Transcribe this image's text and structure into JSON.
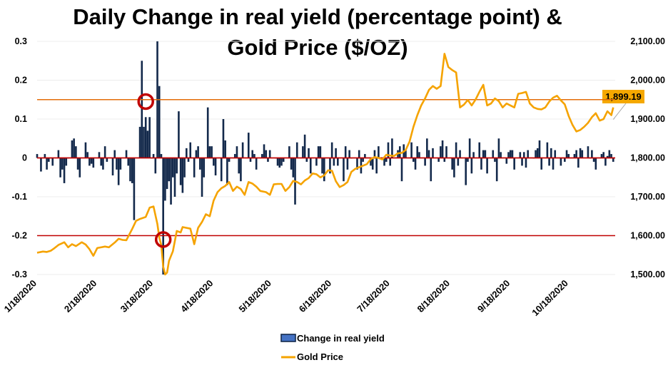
{
  "chart_data": {
    "type": "bar+line",
    "title_lines": [
      "Daily Change in real yield (percentage point) &",
      "Gold Price ($/OZ)"
    ],
    "xlabel": "",
    "x_tick_labels": [
      "1/18/2020",
      "2/18/2020",
      "3/18/2020",
      "4/18/2020",
      "5/18/2020",
      "6/18/2020",
      "7/18/2020",
      "8/18/2020",
      "9/18/2020",
      "10/18/2020"
    ],
    "x_range": [
      "1/18/2020",
      "11/11/2020"
    ],
    "y_left": {
      "label": "",
      "ylim": [
        -0.3,
        0.3
      ],
      "ticks": [
        "0.3",
        "0.2",
        "0.1",
        "0",
        "-0.1",
        "-0.2",
        "-0.3"
      ],
      "tick_values": [
        0.3,
        0.2,
        0.1,
        0,
        -0.1,
        -0.2,
        -0.3
      ]
    },
    "y_right": {
      "label": "",
      "ylim": [
        1500,
        2100
      ],
      "ticks": [
        "2,100.00",
        "2,000.00",
        "1,900.00",
        "1,800.00",
        "1,700.00",
        "1,600.00",
        "1,500.00"
      ],
      "tick_values": [
        2100,
        2000,
        1900,
        1800,
        1700,
        1600,
        1500
      ]
    },
    "grid": true,
    "reference_lines": [
      {
        "axis": "left",
        "value": 0.15,
        "color": "#E36C0A"
      },
      {
        "axis": "left",
        "value": 0,
        "color": "#C00000"
      },
      {
        "axis": "left",
        "value": -0.2,
        "color": "#C00000"
      }
    ],
    "annotations": [
      {
        "type": "circle",
        "day": 56,
        "value": 0.145,
        "color": "#C00000"
      },
      {
        "type": "circle",
        "day": 65,
        "value": -0.21,
        "color": "#C00000"
      },
      {
        "type": "callout",
        "text": "1,899.19",
        "series": "Gold Price",
        "value": 1899.19,
        "bg": "#F5A800"
      }
    ],
    "legend": {
      "placement": "bottom",
      "entries": [
        "Change in real yield",
        "Gold Price"
      ]
    },
    "series": [
      {
        "name": "Change in real yield",
        "type": "bar",
        "axis": "left",
        "color": "#13294B",
        "days": [
          0,
          2,
          4,
          5,
          6,
          7,
          8,
          11,
          12,
          13,
          14,
          15,
          16,
          18,
          19,
          20,
          21,
          22,
          25,
          26,
          27,
          28,
          29,
          32,
          33,
          34,
          35,
          36,
          39,
          40,
          41,
          42,
          43,
          46,
          47,
          48,
          49,
          50,
          53,
          54,
          55,
          56,
          57,
          58,
          59,
          60,
          61,
          62,
          63,
          64,
          65,
          66,
          67,
          68,
          69,
          70,
          71,
          72,
          73,
          74,
          75,
          76,
          77,
          78,
          79,
          81,
          82,
          83,
          84,
          85,
          86,
          88,
          89,
          90,
          91,
          92,
          95,
          96,
          97,
          98,
          99,
          102,
          103,
          104,
          105,
          106,
          109,
          110,
          111,
          112,
          113,
          116,
          117,
          118,
          119,
          120,
          123,
          124,
          125,
          126,
          127,
          130,
          131,
          132,
          133,
          134,
          137,
          138,
          139,
          140,
          141,
          144,
          145,
          146,
          147,
          148,
          151,
          152,
          153,
          154,
          155,
          158,
          159,
          160,
          161,
          162,
          165,
          166,
          167,
          168,
          169,
          172,
          173,
          174,
          175,
          176,
          179,
          180,
          181,
          182,
          183,
          186,
          187,
          188,
          189,
          190,
          193,
          194,
          195,
          196,
          197,
          200,
          201,
          202,
          203,
          204,
          207,
          208,
          209,
          210,
          211,
          214,
          215,
          216,
          217,
          218,
          221,
          222,
          223,
          224,
          225,
          228,
          229,
          230,
          231,
          232,
          235,
          236,
          237,
          238,
          239,
          242,
          243,
          244,
          245,
          246,
          249,
          250,
          251,
          252,
          253,
          256,
          257,
          258,
          259,
          260,
          263,
          264,
          265,
          266,
          267,
          270,
          271,
          272,
          273,
          274,
          277,
          278,
          279,
          280,
          281,
          284,
          285,
          286,
          287,
          288,
          291,
          292,
          293,
          294,
          295,
          296,
          297
        ],
        "values": [
          0.01,
          -0.035,
          0.01,
          -0.03,
          -0.01,
          0.0,
          -0.02,
          0.02,
          -0.05,
          -0.03,
          -0.065,
          -0.02,
          0.0,
          0.045,
          0.05,
          0.03,
          -0.03,
          -0.05,
          0.04,
          0.015,
          -0.02,
          -0.015,
          -0.025,
          0.015,
          -0.02,
          -0.03,
          0.03,
          -0.01,
          -0.045,
          0.02,
          -0.03,
          -0.07,
          -0.03,
          0.02,
          -0.02,
          -0.06,
          -0.065,
          -0.16,
          0.08,
          0.25,
          0.08,
          0.105,
          0.07,
          0.105,
          0.0,
          0.01,
          -0.04,
          0.3,
          0.185,
          0.01,
          -0.3,
          -0.11,
          -0.08,
          -0.06,
          -0.12,
          -0.05,
          -0.1,
          -0.04,
          0.12,
          -0.07,
          -0.09,
          -0.05,
          0.025,
          -0.01,
          0.04,
          -0.05,
          0.02,
          0.03,
          -0.03,
          -0.1,
          -0.05,
          0.13,
          0.03,
          0.03,
          -0.02,
          -0.045,
          -0.06,
          0.1,
          0.045,
          -0.07,
          -0.01,
          0.01,
          0.03,
          -0.04,
          -0.06,
          0.04,
          0.065,
          -0.01,
          0.02,
          0.01,
          -0.03,
          0.01,
          0.035,
          0.02,
          -0.01,
          0.02,
          0.0,
          -0.02,
          -0.025,
          -0.02,
          -0.01,
          0.03,
          -0.03,
          -0.05,
          -0.12,
          0.04,
          0.03,
          0.06,
          -0.01,
          0.025,
          -0.04,
          -0.02,
          0.03,
          0.03,
          -0.04,
          -0.06,
          -0.04,
          0.04,
          -0.02,
          0.025,
          -0.02,
          -0.06,
          0.03,
          -0.03,
          0.02,
          0.0,
          -0.03,
          0.02,
          -0.04,
          -0.01,
          0.01,
          -0.02,
          -0.03,
          0.02,
          -0.04,
          0.03,
          -0.02,
          -0.01,
          0.04,
          -0.02,
          0.05,
          0.02,
          0.03,
          -0.06,
          0.035,
          0.02,
          0.04,
          -0.01,
          -0.03,
          0.03,
          0.015,
          -0.02,
          0.05,
          0.02,
          -0.06,
          0.025,
          -0.01,
          0.03,
          0.045,
          -0.01,
          0.03,
          -0.03,
          -0.05,
          0.04,
          -0.02,
          0.02,
          -0.07,
          -0.01,
          0.05,
          -0.04,
          0.015,
          0.04,
          -0.03,
          0.02,
          0.02,
          -0.04,
          0.02,
          -0.01,
          -0.06,
          0.05,
          0.015,
          -0.015,
          0.015,
          0.02,
          0.02,
          -0.03,
          0.015,
          -0.02,
          0.015,
          -0.025,
          0.02,
          0.0,
          0.02,
          0.025,
          0.045,
          -0.03,
          0.04,
          -0.02,
          0.025,
          -0.03,
          0.02,
          -0.02,
          0.0,
          -0.01,
          0.02,
          0.01,
          0.01,
          0.02,
          -0.025,
          0.025,
          0.02,
          0.03,
          0.0,
          0.02,
          -0.01,
          -0.03,
          0.01,
          0.015,
          -0.02,
          0.005,
          0.02,
          0.01,
          -0.01,
          0.03,
          0.045,
          0.05,
          -0.04,
          0.04,
          -0.05
        ],
        "note": "approximate daily values read from bars; days counted from 1/18/2020"
      },
      {
        "name": "Gold Price",
        "type": "line",
        "axis": "right",
        "color": "#F5A300",
        "days": [
          0,
          3,
          5,
          7,
          9,
          11,
          14,
          16,
          18,
          20,
          23,
          25,
          27,
          29,
          30,
          31,
          33,
          35,
          37,
          40,
          42,
          44,
          46,
          49,
          51,
          53,
          56,
          58,
          60,
          62,
          63,
          64,
          65,
          66,
          67,
          68,
          70,
          72,
          74,
          75,
          77,
          79,
          81,
          83,
          85,
          87,
          89,
          91,
          93,
          95,
          97,
          99,
          101,
          103,
          105,
          107,
          109,
          111,
          113,
          115,
          118,
          120,
          122,
          124,
          126,
          128,
          130,
          132,
          134,
          136,
          138,
          140,
          142,
          144,
          146,
          148,
          150,
          152,
          154,
          156,
          158,
          160,
          162,
          164,
          166,
          168,
          170,
          172,
          174,
          176,
          178,
          180,
          182,
          184,
          186,
          188,
          190,
          192,
          194,
          196,
          198,
          200,
          202,
          204,
          206,
          208,
          210,
          212,
          214,
          216,
          218,
          220,
          222,
          224,
          226,
          228,
          230,
          232,
          234,
          236,
          238,
          240,
          242,
          244,
          246,
          248,
          250,
          252,
          254,
          256,
          258,
          260,
          262,
          264,
          266,
          268,
          270,
          272,
          274,
          276,
          278,
          280,
          282,
          284,
          286,
          288,
          290,
          292,
          294,
          296,
          297
        ],
        "values": [
          1556,
          1559,
          1558,
          1561,
          1568,
          1576,
          1583,
          1570,
          1578,
          1573,
          1583,
          1577,
          1565,
          1548,
          1558,
          1568,
          1570,
          1572,
          1570,
          1582,
          1592,
          1589,
          1588,
          1617,
          1638,
          1643,
          1648,
          1672,
          1675,
          1630,
          1595,
          1575,
          1520,
          1500,
          1505,
          1535,
          1560,
          1612,
          1608,
          1622,
          1620,
          1618,
          1578,
          1620,
          1635,
          1655,
          1650,
          1690,
          1712,
          1722,
          1728,
          1738,
          1715,
          1726,
          1720,
          1705,
          1738,
          1734,
          1726,
          1715,
          1712,
          1705,
          1732,
          1733,
          1733,
          1715,
          1725,
          1741,
          1738,
          1732,
          1742,
          1748,
          1760,
          1758,
          1750,
          1755,
          1768,
          1767,
          1740,
          1725,
          1730,
          1738,
          1764,
          1772,
          1776,
          1780,
          1784,
          1797,
          1802,
          1800,
          1796,
          1808,
          1806,
          1805,
          1812,
          1813,
          1820,
          1842,
          1880,
          1910,
          1935,
          1953,
          1975,
          1985,
          1978,
          1985,
          2068,
          2034,
          2026,
          2020,
          1930,
          1937,
          1949,
          1935,
          1950,
          1970,
          1988,
          1935,
          1940,
          1953,
          1946,
          1930,
          1940,
          1935,
          1930,
          1965,
          1967,
          1970,
          1940,
          1930,
          1926,
          1925,
          1930,
          1945,
          1955,
          1960,
          1948,
          1938,
          1908,
          1885,
          1868,
          1872,
          1880,
          1890,
          1905,
          1915,
          1896,
          1900,
          1920,
          1910,
          1930,
          1908,
          1889,
          1899
        ]
      }
    ]
  },
  "legend_entries": [
    {
      "label": "Change in real yield"
    },
    {
      "label": "Gold Price"
    }
  ],
  "callout": {
    "text": "1,899.19"
  }
}
